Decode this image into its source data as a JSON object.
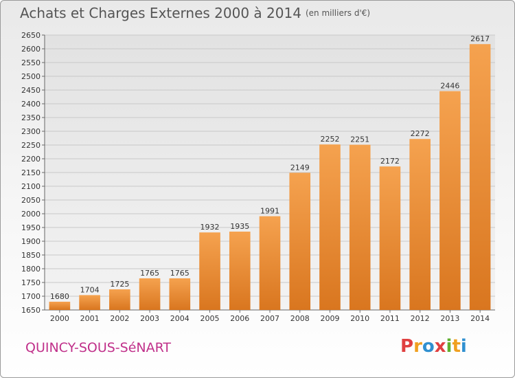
{
  "header": {
    "title": "Achats et Charges Externes 2000 à 2014",
    "unit": "(en milliers d'€)"
  },
  "footer": {
    "city": "QUINCY-SOUS-SéNART",
    "logo": "Proxiti"
  },
  "colors": {
    "bar_light": "#f5a24f",
    "bar_dark": "#d9761f",
    "city": "#c0308a",
    "logo_letters": [
      "#e04040",
      "#f0a020",
      "#3090d0",
      "#e04040",
      "#60b030",
      "#f0a020",
      "#3090d0"
    ]
  },
  "chart_data": {
    "type": "bar",
    "title": "Achats et Charges Externes 2000 à 2014",
    "subtitle": "(en milliers d'€)",
    "categories": [
      "2000",
      "2001",
      "2002",
      "2003",
      "2004",
      "2005",
      "2006",
      "2007",
      "2008",
      "2009",
      "2010",
      "2011",
      "2012",
      "2013",
      "2014"
    ],
    "values": [
      1680,
      1704,
      1725,
      1765,
      1765,
      1932,
      1935,
      1991,
      2149,
      2252,
      2251,
      2172,
      2272,
      2446,
      2617
    ],
    "ylim": [
      1650,
      2650
    ],
    "yticks": [
      1650,
      1700,
      1750,
      1800,
      1850,
      1900,
      1950,
      2000,
      2050,
      2100,
      2150,
      2200,
      2250,
      2300,
      2350,
      2400,
      2450,
      2500,
      2550,
      2600,
      2650
    ],
    "grid": true,
    "xlabel": "",
    "ylabel": ""
  }
}
